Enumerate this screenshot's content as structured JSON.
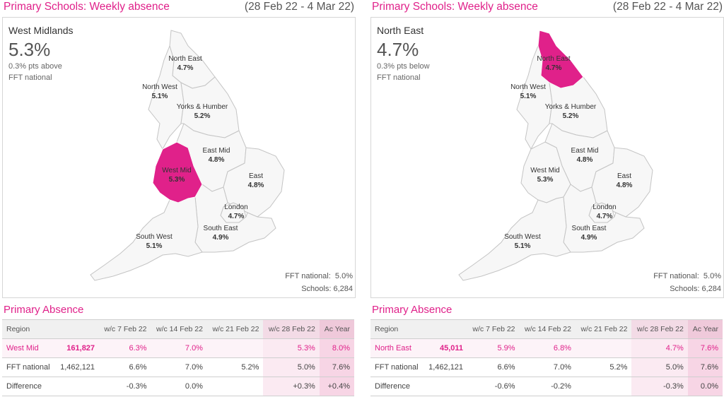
{
  "accent": "#e0218a",
  "panels": [
    {
      "title": "Primary Schools: Weekly absence",
      "dates": "(28 Feb 22 - 4 Mar 22)",
      "selected_region": "West Midlands",
      "selected_value": "5.3%",
      "note_line1": "0.3% pts above",
      "note_line2": "FFT national",
      "highlight_region": "west_mid",
      "map_labels": {
        "north_east": {
          "name": "North East",
          "value": "4.7%"
        },
        "north_west": {
          "name": "North West",
          "value": "5.1%"
        },
        "yorks": {
          "name": "Yorks & Humber",
          "value": "5.2%"
        },
        "east_mid": {
          "name": "East Mid",
          "value": "4.8%"
        },
        "west_mid": {
          "name": "West Mid",
          "value": "5.3%"
        },
        "east": {
          "name": "East",
          "value": "4.8%"
        },
        "london": {
          "name": "London",
          "value": "4.7%"
        },
        "south_east": {
          "name": "South East",
          "value": "4.9%"
        },
        "south_west": {
          "name": "South West",
          "value": "5.1%"
        }
      },
      "fft_national_label": "FFT national:",
      "fft_national_value": "5.0%",
      "schools_label": "Schools:",
      "schools_value": "6,284",
      "table_title": "Primary Absence",
      "table": {
        "headers": [
          "Region",
          "",
          "w/c 7 Feb 22",
          "w/c 14 Feb 22",
          "w/c 21 Feb 22",
          "w/c 28 Feb 22",
          "Ac Year"
        ],
        "rows": [
          [
            "West Mid",
            "161,827",
            "6.3%",
            "7.0%",
            "",
            "5.3%",
            "8.0%"
          ],
          [
            "FFT national",
            "1,462,121",
            "6.6%",
            "7.0%",
            "5.2%",
            "5.0%",
            "7.6%"
          ],
          [
            "Difference",
            "",
            "-0.3%",
            "0.0%",
            "",
            "+0.3%",
            "+0.4%"
          ]
        ]
      }
    },
    {
      "title": "Primary Schools: Weekly absence",
      "dates": "(28 Feb 22 - 4 Mar 22)",
      "selected_region": "North East",
      "selected_value": "4.7%",
      "note_line1": "0.3% pts below",
      "note_line2": "FFT national",
      "highlight_region": "north_east",
      "map_labels": {
        "north_east": {
          "name": "North East",
          "value": "4.7%"
        },
        "north_west": {
          "name": "North West",
          "value": "5.1%"
        },
        "yorks": {
          "name": "Yorks & Humber",
          "value": "5.2%"
        },
        "east_mid": {
          "name": "East Mid",
          "value": "4.8%"
        },
        "west_mid": {
          "name": "West Mid",
          "value": "5.3%"
        },
        "east": {
          "name": "East",
          "value": "4.8%"
        },
        "london": {
          "name": "London",
          "value": "4.7%"
        },
        "south_east": {
          "name": "South East",
          "value": "4.9%"
        },
        "south_west": {
          "name": "South West",
          "value": "5.1%"
        }
      },
      "fft_national_label": "FFT national:",
      "fft_national_value": "5.0%",
      "schools_label": "Schools:",
      "schools_value": "6,284",
      "table_title": "Primary Absence",
      "table": {
        "headers": [
          "Region",
          "",
          "w/c 7 Feb 22",
          "w/c 14 Feb 22",
          "w/c 21 Feb 22",
          "w/c 28 Feb 22",
          "Ac Year"
        ],
        "rows": [
          [
            "North East",
            "45,011",
            "5.9%",
            "6.8%",
            "",
            "4.7%",
            "7.6%"
          ],
          [
            "FFT national",
            "1,462,121",
            "6.6%",
            "7.0%",
            "5.2%",
            "5.0%",
            "7.6%"
          ],
          [
            "Difference",
            "",
            "-0.6%",
            "-0.2%",
            "",
            "-0.3%",
            "0.0%"
          ]
        ]
      }
    }
  ]
}
